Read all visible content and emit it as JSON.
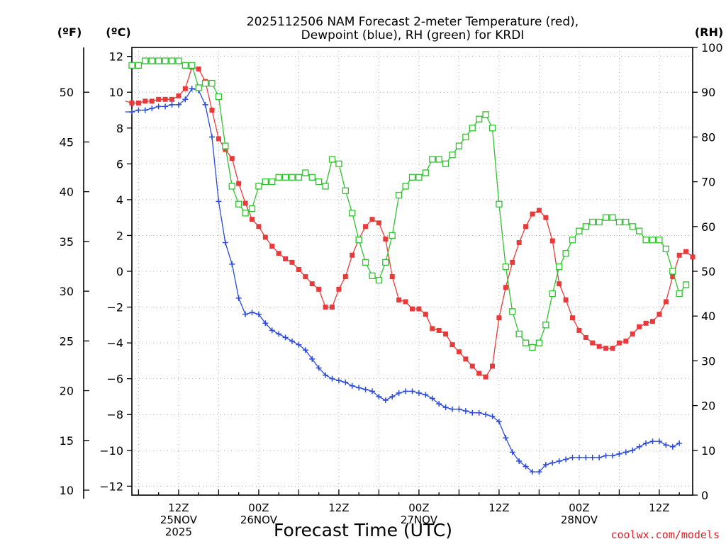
{
  "chart_data": {
    "type": "line",
    "title_line1": "2025112506 NAM Forecast 2-meter Temperature (red),",
    "title_line2": "Dewpoint (blue), RH (green) for KRDI",
    "xlabel": "Forecast Time (UTC)",
    "credit": "coolwx.com/models",
    "left_outer_unit": "(ºF)",
    "left_inner_unit": "(ºC)",
    "right_unit": "(RH)",
    "celsius_ticks": [
      "12",
      "10",
      "8",
      "6",
      "4",
      "2",
      "0",
      "−2",
      "−4",
      "−6",
      "−8",
      "−10",
      "−12"
    ],
    "celsius_tick_values": [
      12,
      10,
      8,
      6,
      4,
      2,
      0,
      -2,
      -4,
      -6,
      -8,
      -10,
      -12
    ],
    "fahrenheit_ticks": [
      "50",
      "45",
      "40",
      "35",
      "30",
      "25",
      "20",
      "15",
      "10"
    ],
    "fahrenheit_tick_values": [
      50,
      45,
      40,
      35,
      30,
      25,
      20,
      15,
      10
    ],
    "rh_ticks": [
      "100",
      "90",
      "80",
      "70",
      "60",
      "50",
      "40",
      "30",
      "20",
      "10",
      "0"
    ],
    "rh_tick_values": [
      100,
      90,
      80,
      70,
      60,
      50,
      40,
      30,
      20,
      10,
      0
    ],
    "celsius_range": [
      -12.5,
      12.5
    ],
    "rh_range": [
      0,
      100
    ],
    "x_range_hours": [
      -7,
      77
    ],
    "x_ticks": [
      {
        "hour": 0,
        "lines": [
          "12Z",
          "25NOV",
          "2025"
        ]
      },
      {
        "hour": 12,
        "lines": [
          "00Z",
          "26NOV"
        ]
      },
      {
        "hour": 24,
        "lines": [
          "12Z"
        ]
      },
      {
        "hour": 36,
        "lines": [
          "00Z",
          "27NOV"
        ]
      },
      {
        "hour": 48,
        "lines": [
          "12Z"
        ]
      },
      {
        "hour": 60,
        "lines": [
          "00Z",
          "28NOV"
        ]
      },
      {
        "hour": 72,
        "lines": [
          "12Z"
        ]
      }
    ],
    "x_hours": [
      -6,
      -5,
      -4,
      -3,
      -2,
      -1,
      0,
      1,
      2,
      3,
      4,
      5,
      6,
      7,
      8,
      9,
      10,
      11,
      12,
      13,
      14,
      15,
      16,
      17,
      18,
      19,
      20,
      21,
      22,
      23,
      24,
      25,
      26,
      27,
      28,
      29,
      30,
      31,
      32,
      33,
      34,
      35,
      36,
      37,
      38,
      39,
      40,
      41,
      42,
      43,
      44,
      45,
      46,
      47,
      48,
      49,
      50,
      51,
      52,
      53,
      54,
      55,
      56,
      57,
      58,
      59,
      60,
      61,
      62,
      63,
      64,
      65,
      66,
      67,
      68,
      69,
      70,
      71,
      72,
      73,
      74,
      75,
      76,
      77
    ],
    "series": [
      {
        "name": "2-meter Temperature",
        "units": "C",
        "color": "#e83a3a",
        "marker": "filled-square",
        "values": [
          9.5,
          9.4,
          9.4,
          9.5,
          9.5,
          9.6,
          9.6,
          9.6,
          9.8,
          10.2,
          11.4,
          11.3,
          10.6,
          9.0,
          7.4,
          6.8,
          6.3,
          4.9,
          3.8,
          2.9,
          2.5,
          1.9,
          1.4,
          1.0,
          0.7,
          0.5,
          0.1,
          -0.3,
          -0.7,
          -1.0,
          -2.0,
          -2.0,
          -1.0,
          -0.3,
          0.9,
          1.8,
          2.5,
          2.9,
          2.7,
          1.8,
          -0.3,
          -1.6,
          -1.7,
          -2.1,
          -2.1,
          -2.4,
          -3.2,
          -3.3,
          -3.5,
          -4.1,
          -4.5,
          -4.9,
          -5.3,
          -5.7,
          -5.9,
          -5.3,
          -2.6,
          -0.9,
          0.5,
          1.6,
          2.5,
          3.2,
          3.4,
          3.0,
          1.7,
          -0.7,
          -1.6,
          -2.6,
          -3.3,
          -3.7,
          -4.0,
          -4.2,
          -4.3,
          -4.3,
          -4.0,
          -3.9,
          -3.5,
          -3.1,
          -2.9,
          -2.8,
          -2.4,
          -1.7,
          -0.3,
          0.9,
          1.1,
          0.8
        ],
        "x_start": -8
      },
      {
        "name": "Dewpoint",
        "units": "C",
        "color": "#2b4bdc",
        "marker": "plus",
        "values": [
          8.9,
          8.9,
          9.0,
          9.0,
          9.1,
          9.2,
          9.2,
          9.3,
          9.3,
          9.6,
          10.2,
          10.1,
          9.3,
          7.5,
          3.9,
          1.6,
          0.4,
          -1.5,
          -2.4,
          -2.3,
          -2.4,
          -2.9,
          -3.3,
          -3.5,
          -3.7,
          -3.9,
          -4.1,
          -4.4,
          -4.9,
          -5.4,
          -5.8,
          -6.0,
          -6.1,
          -6.2,
          -6.4,
          -6.5,
          -6.6,
          -6.7,
          -7.0,
          -7.2,
          -7.0,
          -6.8,
          -6.7,
          -6.7,
          -6.8,
          -6.9,
          -7.1,
          -7.4,
          -7.6,
          -7.7,
          -7.7,
          -7.8,
          -7.9,
          -7.9,
          -8.0,
          -8.1,
          -8.4,
          -9.3,
          -10.1,
          -10.6,
          -10.9,
          -11.2,
          -11.2,
          -10.8,
          -10.7,
          -10.6,
          -10.5,
          -10.4,
          -10.4,
          -10.4,
          -10.4,
          -10.4,
          -10.3,
          -10.3,
          -10.2,
          -10.1,
          -10.0,
          -9.8,
          -9.6,
          -9.5,
          -9.5,
          -9.7,
          -9.8,
          -9.6
        ],
        "x_start": -8
      },
      {
        "name": "RH",
        "units": "%",
        "color": "#2fc22f",
        "marker": "open-square",
        "values": [
          96,
          96,
          97,
          97,
          97,
          97,
          97,
          97,
          96,
          96,
          91,
          92,
          92,
          89,
          78,
          69,
          65,
          63,
          64,
          69,
          70,
          70,
          71,
          71,
          71,
          71,
          72,
          71,
          70,
          69,
          75,
          74,
          68,
          63,
          57,
          52,
          49,
          48,
          52,
          58,
          67,
          69,
          71,
          71,
          72,
          75,
          75,
          74,
          76,
          78,
          80,
          82,
          84,
          85,
          82,
          65,
          51,
          41,
          36,
          34,
          33,
          34,
          38,
          45,
          51,
          54,
          57,
          59,
          60,
          61,
          61,
          62,
          62,
          61,
          61,
          60,
          59,
          57,
          57,
          57,
          55,
          50,
          45,
          47
        ],
        "x_start": -7
      }
    ]
  }
}
